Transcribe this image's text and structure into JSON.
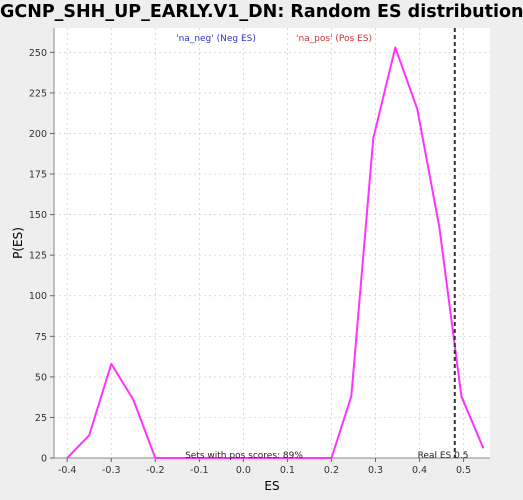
{
  "title": "GCNP_SHH_UP_EARLY.V1_DN: Random ES distribution",
  "colors": {
    "line": "#ff33ff",
    "neg_legend": "#3333cc",
    "pos_legend": "#cc3333",
    "real_es_line": "#333333",
    "plot_bg": "#ffffff",
    "grid": "#cccccc"
  },
  "chart_data": {
    "type": "line",
    "title": "GCNP_SHH_UP_EARLY.V1_DN: Random ES distribution",
    "xlabel": "ES",
    "ylabel": "P(ES)",
    "xlim": [
      -0.43,
      0.56
    ],
    "ylim": [
      0,
      265
    ],
    "grid": true,
    "x_ticks": [
      "-0.4",
      "-0.3",
      "-0.2",
      "-0.1",
      "0.0",
      "0.1",
      "0.2",
      "0.3",
      "0.4",
      "0.5"
    ],
    "x_tick_values": [
      -0.4,
      -0.3,
      -0.2,
      -0.1,
      0.0,
      0.1,
      0.2,
      0.3,
      0.4,
      0.5
    ],
    "y_ticks": [
      "0",
      "25",
      "50",
      "75",
      "100",
      "125",
      "150",
      "175",
      "200",
      "225",
      "250"
    ],
    "y_tick_values": [
      0,
      25,
      50,
      75,
      100,
      125,
      150,
      175,
      200,
      225,
      250
    ],
    "series": [
      {
        "x": [
          -0.4,
          -0.35,
          -0.3,
          -0.25,
          -0.2,
          -0.15,
          -0.1,
          -0.05,
          0.0,
          0.05,
          0.1,
          0.15,
          0.2,
          0.245,
          0.295,
          0.345,
          0.395,
          0.445,
          0.495,
          0.545
        ],
        "values": [
          0,
          14,
          58,
          36,
          0,
          0,
          0,
          0,
          0,
          0,
          0,
          0,
          0,
          38,
          197,
          253,
          215,
          142,
          38,
          6
        ]
      }
    ],
    "legend": [
      "'na_neg' (Neg ES)",
      "'na_pos' (Pos ES)"
    ],
    "legend_position": "top",
    "real_es": {
      "value": 0.48,
      "label": "Real ES 0.5"
    },
    "annotation": "Sets with pos scores: 89%"
  }
}
